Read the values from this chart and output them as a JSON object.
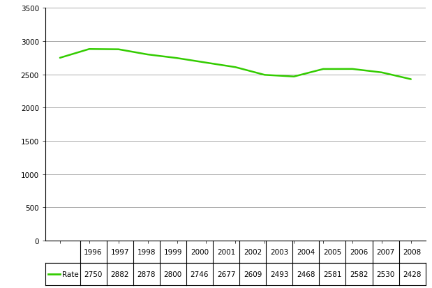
{
  "years": [
    1996,
    1997,
    1998,
    1999,
    2000,
    2001,
    2002,
    2003,
    2004,
    2005,
    2006,
    2007,
    2008
  ],
  "values": [
    2750,
    2882,
    2878,
    2800,
    2746,
    2677,
    2609,
    2493,
    2468,
    2581,
    2582,
    2530,
    2428
  ],
  "line_color": "#33cc00",
  "line_width": 1.8,
  "ylim": [
    0,
    3500
  ],
  "yticks": [
    0,
    500,
    1000,
    1500,
    2000,
    2500,
    3000,
    3500
  ],
  "background_color": "#ffffff",
  "grid_color": "#888888",
  "table_row_label": "Rate",
  "tick_fontsize": 7.5,
  "table_fontsize": 7.5
}
